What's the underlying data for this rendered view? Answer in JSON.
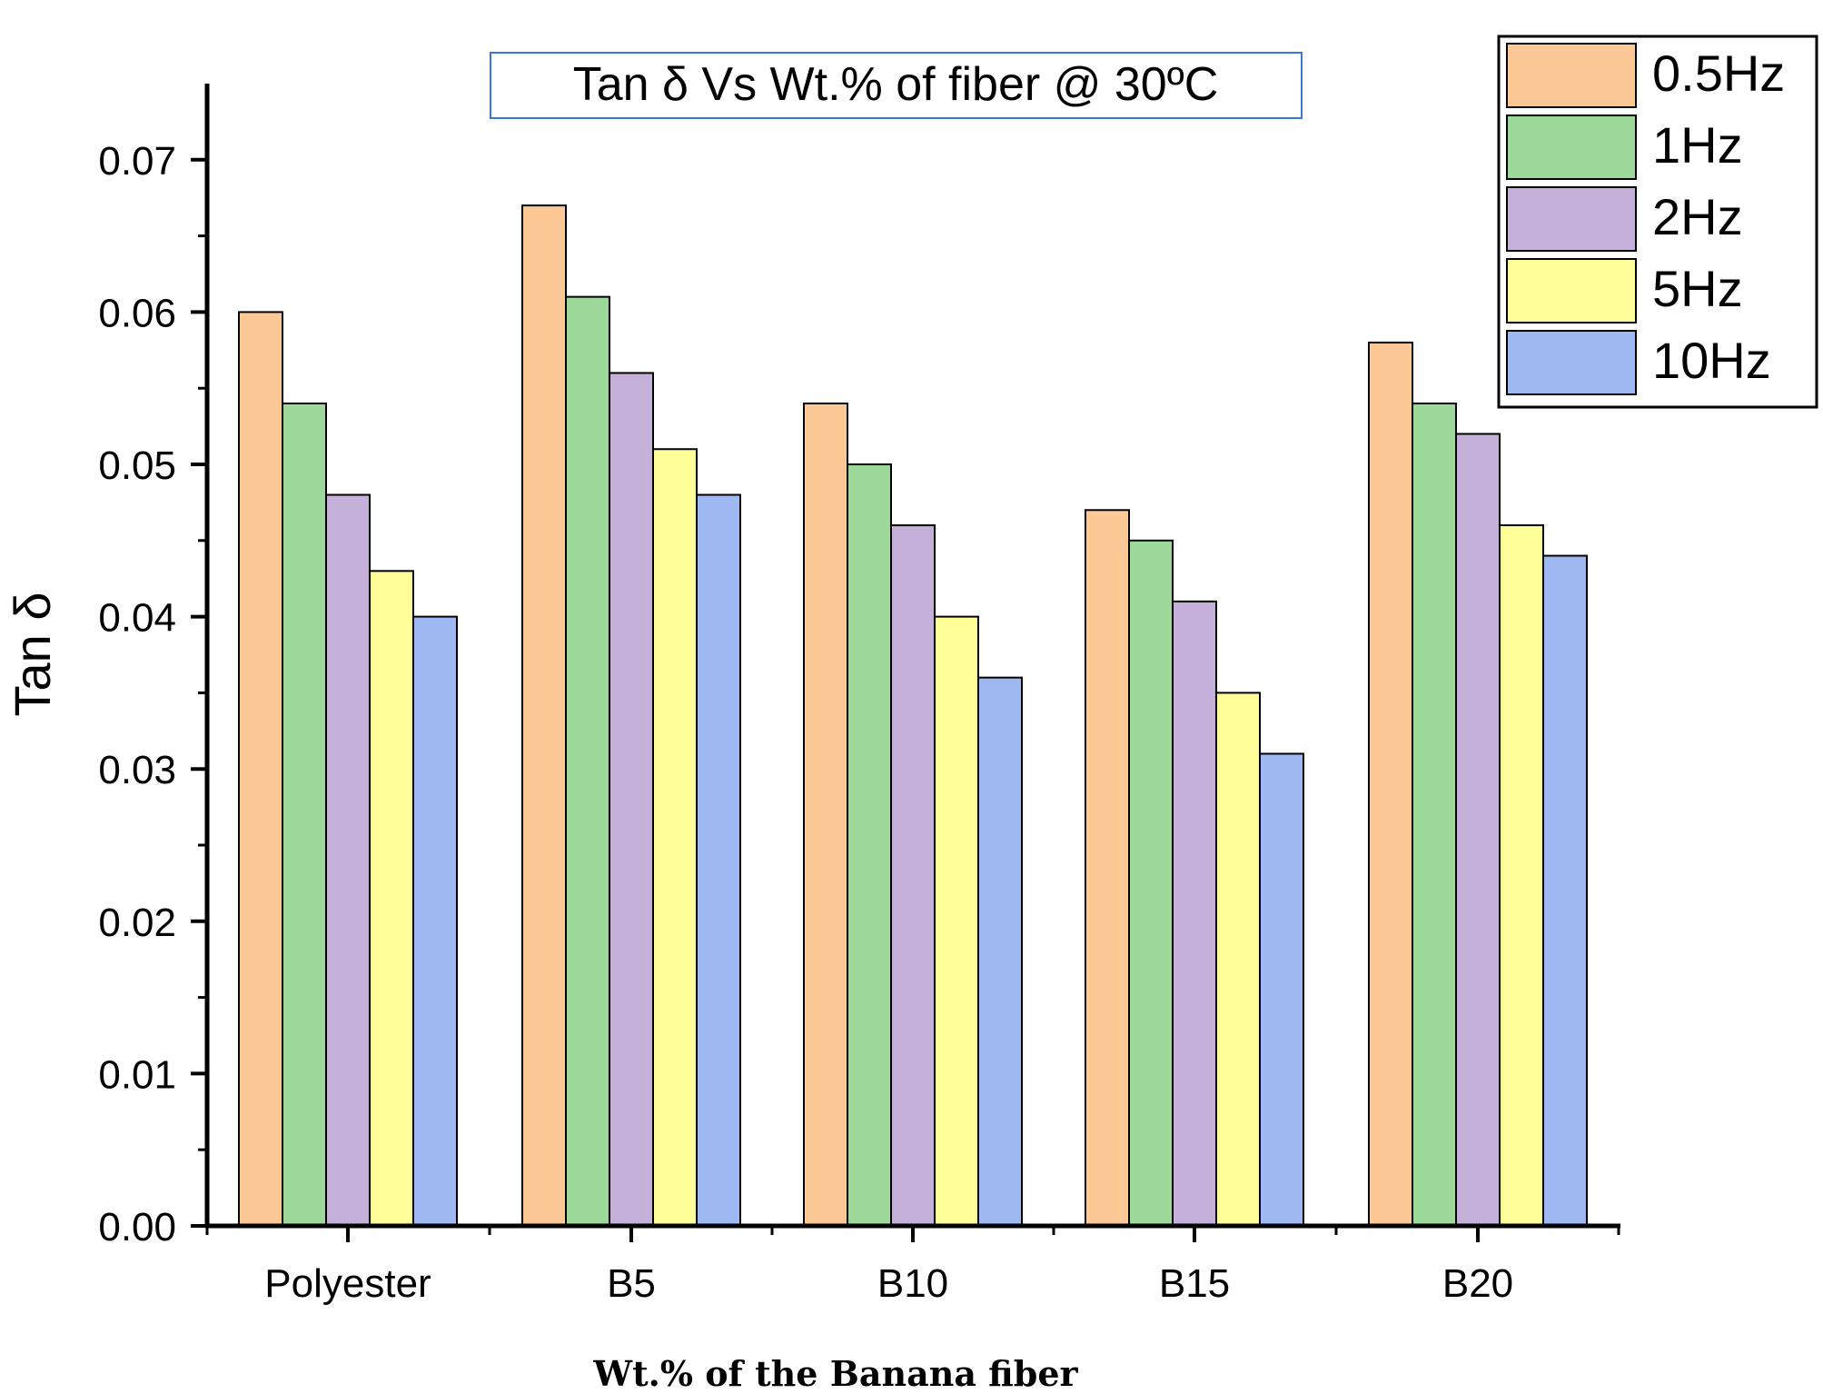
{
  "chart_data": {
    "type": "bar",
    "title": "Tan δ Vs Wt.% of fiber @ 30ºC",
    "xlabel": "Wt.% of the Banana fiber",
    "ylabel": "Tan δ",
    "categories": [
      "Polyester",
      "B5",
      "B10",
      "B15",
      "B20"
    ],
    "ylim": [
      0,
      0.075
    ],
    "yticks": [
      "0.00",
      "0.01",
      "0.02",
      "0.03",
      "0.04",
      "0.05",
      "0.06",
      "0.07"
    ],
    "legend_position": "top-right",
    "grid": false,
    "series": [
      {
        "name": "0.5Hz",
        "color": "#FCC896",
        "values": [
          0.06,
          0.067,
          0.054,
          0.047,
          0.058
        ]
      },
      {
        "name": "1Hz",
        "color": "#9DD99B",
        "values": [
          0.054,
          0.061,
          0.05,
          0.045,
          0.054
        ]
      },
      {
        "name": "2Hz",
        "color": "#C4B0D8",
        "values": [
          0.048,
          0.056,
          0.046,
          0.041,
          0.052
        ]
      },
      {
        "name": "5Hz",
        "color": "#FFFF99",
        "values": [
          0.043,
          0.051,
          0.04,
          0.035,
          0.046
        ]
      },
      {
        "name": "10Hz",
        "color": "#9EB9F2",
        "values": [
          0.04,
          0.048,
          0.036,
          0.031,
          0.044
        ]
      }
    ]
  }
}
